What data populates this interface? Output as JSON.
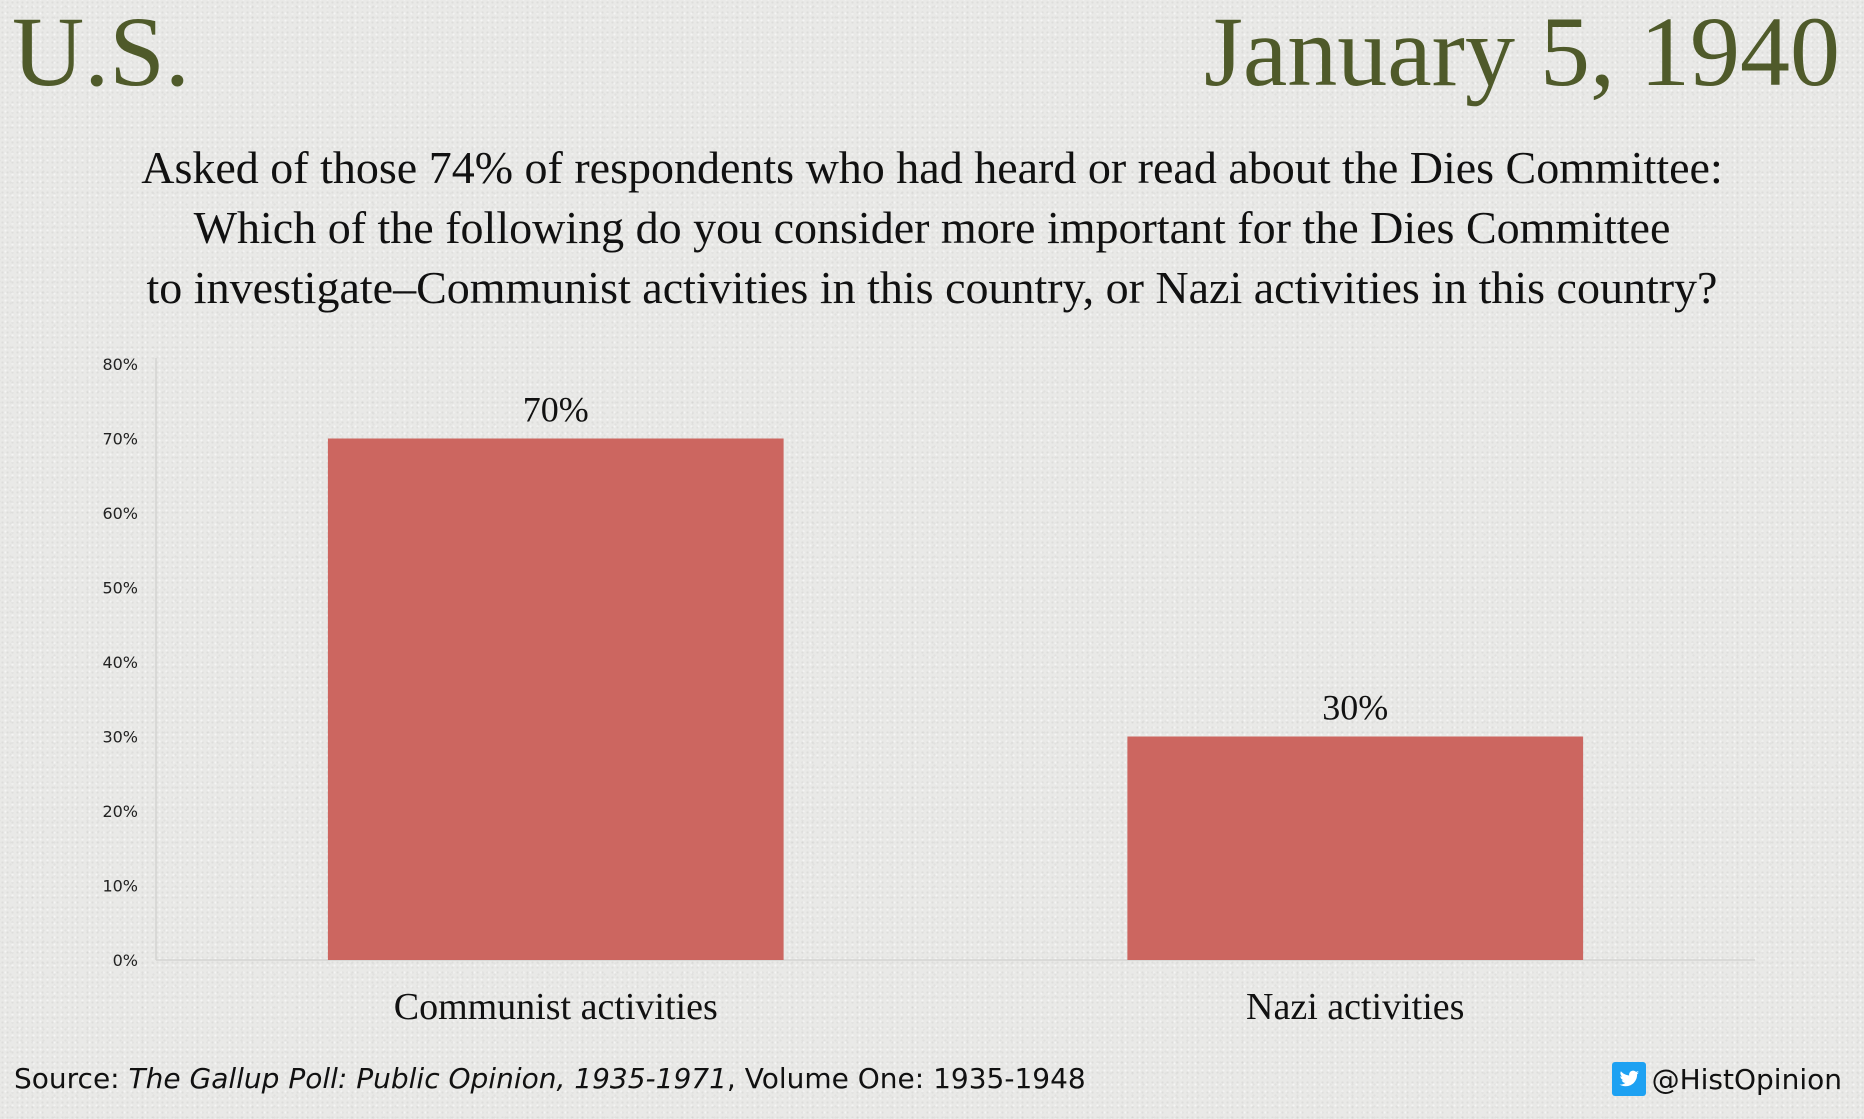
{
  "header": {
    "region": "U.S.",
    "date": "January 5, 1940"
  },
  "question": {
    "line1": "Asked of those 74% of respondents who had heard or read about the Dies Committee:",
    "line2": "Which of the following do you consider more important for the Dies Committee",
    "line3": "to investigate–Communist activities in this country, or Nazi activities in this country?"
  },
  "chart_data": {
    "type": "bar",
    "categories": [
      "Communist activities",
      "Nazi activities"
    ],
    "values": [
      70,
      30
    ],
    "value_labels": [
      "70%",
      "30%"
    ],
    "ylim": [
      0,
      80
    ],
    "yticks": [
      "0%",
      "10%",
      "20%",
      "30%",
      "40%",
      "50%",
      "60%",
      "70%",
      "80%"
    ],
    "bar_color": "#cc6660",
    "grid": false,
    "legend": false
  },
  "footer": {
    "source_prefix": "Source: ",
    "source_title": "The Gallup Poll: Public Opinion, 1935-1971",
    "source_suffix": ", Volume One: 1935-1948",
    "twitter_icon": "twitter-icon",
    "twitter_color": "#1da1f2",
    "handle": "@HistOpinion"
  }
}
